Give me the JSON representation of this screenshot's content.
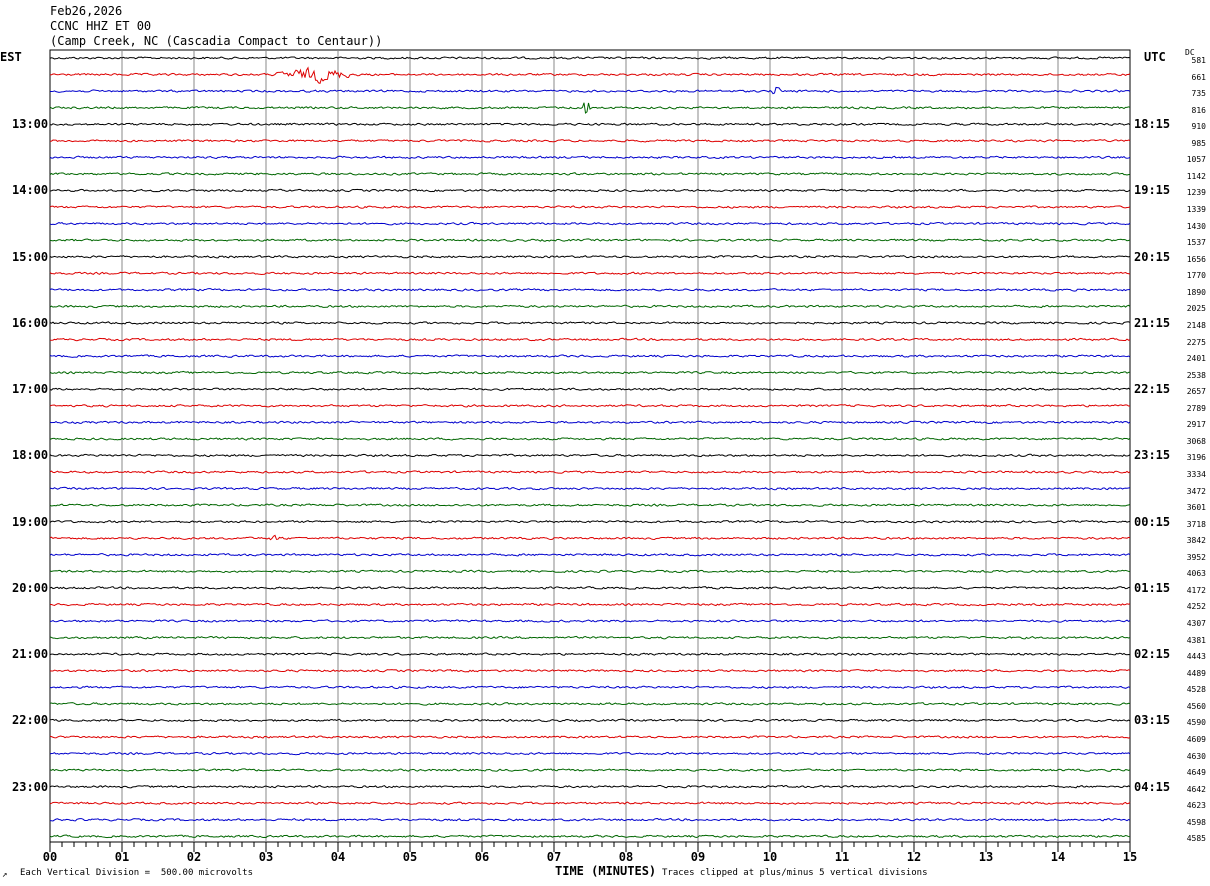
{
  "header": {
    "date": "Feb26,2026",
    "station": "CCNC HHZ ET 00",
    "location": "(Camp Creek, NC (Cascadia Compact to Centaur))"
  },
  "axes": {
    "left_label": "EST",
    "right_label": "UTC",
    "dc_label": "DC",
    "x_title": "TIME (MINUTES)"
  },
  "footer": {
    "left_mark": "↗",
    "vertical_division": "Each Vertical Division =  500.00 microvolts",
    "clip_note": "Traces clipped at plus/minus 5 vertical divisions"
  },
  "chart_data": {
    "type": "line",
    "title": "",
    "xlabel": "TIME (MINUTES)",
    "xlim": [
      0,
      15
    ],
    "x_ticks": [
      "00",
      "01",
      "02",
      "03",
      "04",
      "05",
      "06",
      "07",
      "08",
      "09",
      "10",
      "11",
      "12",
      "13",
      "14",
      "15"
    ],
    "trace_count": 48,
    "trace_colors": [
      "#000000",
      "#dd0000",
      "#0000cc",
      "#006600"
    ],
    "est_hour_labels": [
      {
        "trace": 4,
        "label": "13:00"
      },
      {
        "trace": 8,
        "label": "14:00"
      },
      {
        "trace": 12,
        "label": "15:00"
      },
      {
        "trace": 16,
        "label": "16:00"
      },
      {
        "trace": 20,
        "label": "17:00"
      },
      {
        "trace": 24,
        "label": "18:00"
      },
      {
        "trace": 28,
        "label": "19:00"
      },
      {
        "trace": 32,
        "label": "20:00"
      },
      {
        "trace": 36,
        "label": "21:00"
      },
      {
        "trace": 40,
        "label": "22:00"
      },
      {
        "trace": 44,
        "label": "23:00"
      }
    ],
    "utc_hour_labels": [
      {
        "trace": 4,
        "label": "18:15"
      },
      {
        "trace": 8,
        "label": "19:15"
      },
      {
        "trace": 12,
        "label": "20:15"
      },
      {
        "trace": 16,
        "label": "21:15"
      },
      {
        "trace": 20,
        "label": "22:15"
      },
      {
        "trace": 24,
        "label": "23:15"
      },
      {
        "trace": 28,
        "label": "00:15"
      },
      {
        "trace": 32,
        "label": "01:15"
      },
      {
        "trace": 36,
        "label": "02:15"
      },
      {
        "trace": 40,
        "label": "03:15"
      },
      {
        "trace": 44,
        "label": "04:15"
      }
    ],
    "dc_offsets": [
      "581",
      "661",
      "735",
      "816",
      "910",
      "985",
      "1057",
      "1142",
      "1239",
      "1339",
      "1430",
      "1537",
      "1656",
      "1770",
      "1890",
      "2025",
      "2148",
      "2275",
      "2401",
      "2538",
      "2657",
      "2789",
      "2917",
      "3068",
      "3196",
      "3334",
      "3472",
      "3601",
      "3718",
      "3842",
      "3952",
      "4063",
      "4172",
      "4252",
      "4307",
      "4381",
      "4443",
      "4489",
      "4528",
      "4560",
      "4590",
      "4609",
      "4630",
      "4649",
      "4642",
      "4623",
      "4598",
      "4585"
    ],
    "events": [
      {
        "trace": 1,
        "start_min": 3.05,
        "end_min": 4.3,
        "peak_min": 3.7,
        "amplitude": 6
      },
      {
        "trace": 2,
        "start_min": 10.0,
        "end_min": 10.15,
        "peak_min": 10.08,
        "amplitude": 4
      },
      {
        "trace": 3,
        "start_min": 7.3,
        "end_min": 7.55,
        "peak_min": 7.45,
        "amplitude": 8
      },
      {
        "trace": 29,
        "start_min": 3.0,
        "end_min": 3.3,
        "peak_min": 3.1,
        "amplitude": 2
      }
    ]
  }
}
